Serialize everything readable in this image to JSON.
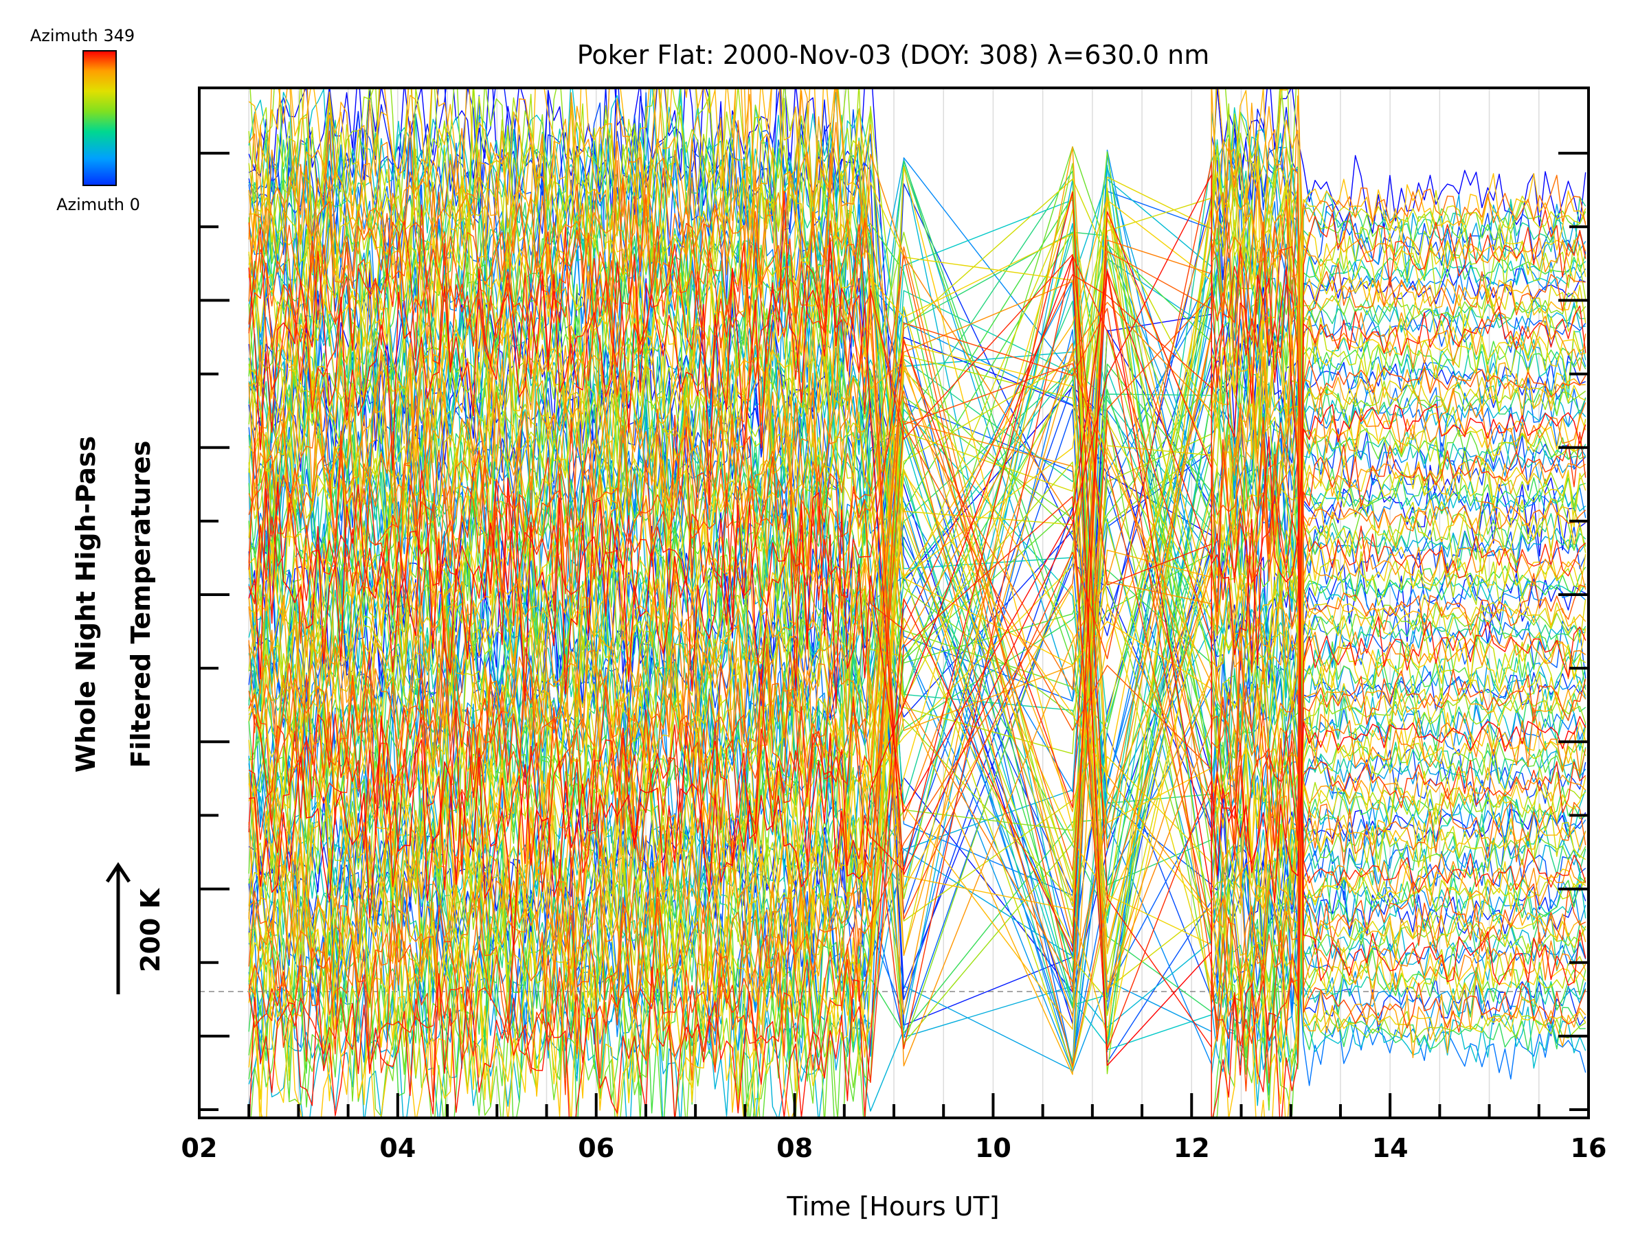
{
  "chart_data": {
    "type": "line",
    "title": "Poker Flat: 2000-Nov-03 (DOY: 308) λ=630.0 nm",
    "xlabel": "Time [Hours UT]",
    "ylabel_lines": [
      "Whole Night High-Pass",
      "Filtered Temperatures"
    ],
    "scale_label": "200 K",
    "xlim": [
      2,
      16
    ],
    "x_ticks": [
      "02",
      "04",
      "06",
      "08",
      "10",
      "12",
      "14",
      "16"
    ],
    "x_minor_step": 0.5,
    "y_ticks": 13,
    "y_minor_ticks": 14,
    "baseline_y": "dashed",
    "grid": "vertical every 0.5 h",
    "colorbar": {
      "top_label": "Azimuth 349",
      "bottom_label": "Azimuth 0",
      "placement": "top-left"
    },
    "series_count": 144,
    "azimuth_range": [
      0,
      349
    ],
    "data_segments_hours": [
      [
        2.5,
        8.8
      ],
      [
        12.2,
        16.0
      ]
    ],
    "sparse_segment_hours": [
      8.8,
      12.2
    ],
    "colormap": [
      "#0000ff",
      "#0080ff",
      "#00c8c8",
      "#40e040",
      "#c0e000",
      "#ffd000",
      "#ff8000",
      "#ff0000"
    ]
  }
}
